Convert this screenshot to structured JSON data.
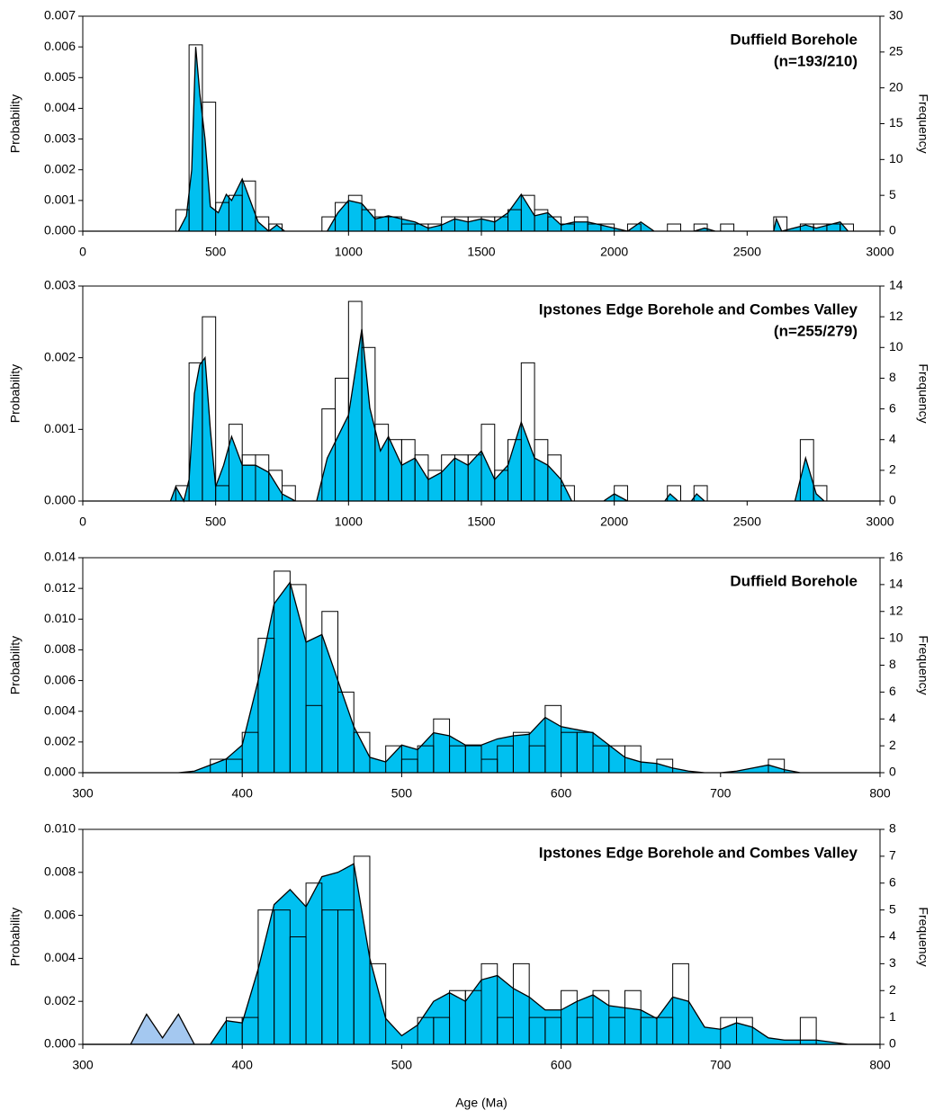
{
  "chart_data": [
    {
      "type": "density",
      "title": "Duffield Borehole",
      "subtitle": "(n=193/210)",
      "ylabel": "Probability",
      "y2label": "Frequency",
      "xlim": [
        0,
        3000
      ],
      "xticks": [
        0,
        500,
        1000,
        1500,
        2000,
        2500,
        3000
      ],
      "ylim": [
        0,
        0.007
      ],
      "yticks": [
        {
          "value": 0,
          "label": "0.000"
        },
        0.001,
        0.002,
        0.003,
        0.004,
        0.005,
        0.006,
        0.007
      ],
      "y2lim": [
        0,
        30
      ],
      "y2ticks": [
        0,
        5,
        10,
        15,
        20,
        25,
        30
      ],
      "x": [
        0,
        360,
        390,
        410,
        425,
        440,
        460,
        480,
        510,
        540,
        560,
        600,
        630,
        660,
        700,
        730,
        760,
        920,
        960,
        1000,
        1050,
        1100,
        1150,
        1200,
        1250,
        1300,
        1350,
        1400,
        1450,
        1500,
        1550,
        1600,
        1650,
        1700,
        1750,
        1800,
        1850,
        1900,
        1950,
        2000,
        2050,
        2100,
        2150,
        2300,
        2340,
        2380,
        2600,
        2610,
        2630,
        2720,
        2760,
        2850,
        2880,
        3000
      ],
      "series": [
        {
          "color": "#00c0f0",
          "values": [
            0,
            0,
            0.0005,
            0.002,
            0.006,
            0.0045,
            0.003,
            0.0008,
            0.0006,
            0.0012,
            0.001,
            0.0017,
            0.001,
            0.0003,
            0,
            0.0002,
            0,
            0,
            0.0006,
            0.001,
            0.0009,
            0.0004,
            0.0005,
            0.0004,
            0.0003,
            0.0001,
            0.0002,
            0.0004,
            0.0003,
            0.0004,
            0.0003,
            0.0006,
            0.0012,
            0.0005,
            0.0006,
            0.0002,
            0.0003,
            0.0003,
            0.0002,
            0.0001,
            0,
            0.0003,
            0,
            0,
            0.0001,
            0,
            0,
            0.0004,
            0,
            0.0002,
            0.0001,
            0.0003,
            0,
            0
          ]
        }
      ],
      "histogram": {
        "axis": "y2",
        "bins": [
          350,
          400,
          450,
          500,
          550,
          600,
          650,
          700,
          750,
          800,
          850,
          900,
          950,
          1000,
          1050,
          1100,
          1150,
          1200,
          1250,
          1300,
          1350,
          1400,
          1450,
          1500,
          1550,
          1600,
          1650,
          1700,
          1750,
          1800,
          1850,
          1900,
          1950,
          2000,
          2050,
          2100,
          2150,
          2200,
          2250,
          2300,
          2350,
          2400,
          2450,
          2500,
          2550,
          2600,
          2650,
          2700,
          2750,
          2800,
          2850,
          2900
        ],
        "values": [
          3,
          26,
          18,
          4,
          5,
          7,
          2,
          1,
          0,
          0,
          0,
          2,
          4,
          5,
          3,
          2,
          2,
          1,
          1,
          1,
          2,
          2,
          2,
          2,
          2,
          3,
          5,
          3,
          2,
          1,
          2,
          1,
          1,
          0,
          1,
          0,
          0,
          1,
          0,
          1,
          0,
          1,
          0,
          0,
          0,
          2,
          0,
          1,
          1,
          1,
          1
        ]
      }
    },
    {
      "type": "density",
      "title": "Ipstones Edge Borehole and Combes Valley",
      "subtitle": "(n=255/279)",
      "ylabel": "Probability",
      "y2label": "Frequency",
      "xlim": [
        0,
        3000
      ],
      "xticks": [
        0,
        500,
        1000,
        1500,
        2000,
        2500,
        3000
      ],
      "ylim": [
        0,
        0.003
      ],
      "yticks": [
        {
          "value": 0,
          "label": "0.000"
        },
        0.001,
        0.002,
        0.003
      ],
      "y2lim": [
        0,
        14
      ],
      "y2ticks": [
        0,
        2,
        4,
        6,
        8,
        10,
        12,
        14
      ],
      "x": [
        0,
        330,
        350,
        380,
        400,
        420,
        440,
        460,
        480,
        500,
        530,
        560,
        600,
        650,
        700,
        750,
        800,
        880,
        920,
        960,
        1000,
        1050,
        1080,
        1120,
        1150,
        1200,
        1250,
        1300,
        1350,
        1400,
        1450,
        1500,
        1550,
        1600,
        1650,
        1700,
        1750,
        1800,
        1840,
        1960,
        2000,
        2050,
        2190,
        2210,
        2240,
        2290,
        2310,
        2340,
        2680,
        2720,
        2760,
        2790,
        3000
      ],
      "series": [
        {
          "color": "#00c0f0",
          "values": [
            0,
            0,
            0.0002,
            0,
            0.0003,
            0.0015,
            0.0019,
            0.002,
            0.001,
            0.0002,
            0.0005,
            0.0009,
            0.0005,
            0.0005,
            0.0004,
            0.0001,
            0,
            0,
            0.0006,
            0.0009,
            0.0012,
            0.0024,
            0.0013,
            0.0007,
            0.0009,
            0.0005,
            0.0006,
            0.0003,
            0.0004,
            0.0006,
            0.0005,
            0.0007,
            0.0003,
            0.0005,
            0.0011,
            0.0006,
            0.0005,
            0.0003,
            0,
            0,
            0.0001,
            0,
            0,
            0.0001,
            0,
            0,
            0.0001,
            0,
            0,
            0.0006,
            0.0001,
            0,
            0
          ]
        }
      ],
      "histogram": {
        "axis": "y2",
        "bins": [
          350,
          400,
          450,
          500,
          550,
          600,
          650,
          700,
          750,
          800,
          850,
          900,
          950,
          1000,
          1050,
          1100,
          1150,
          1200,
          1250,
          1300,
          1350,
          1400,
          1450,
          1500,
          1550,
          1600,
          1650,
          1700,
          1750,
          1800,
          1850,
          1900,
          1950,
          2000,
          2050,
          2100,
          2150,
          2200,
          2250,
          2300,
          2350,
          2400,
          2450,
          2500,
          2550,
          2600,
          2650,
          2700,
          2750,
          2800
        ],
        "values": [
          1,
          9,
          12,
          1,
          5,
          3,
          3,
          2,
          1,
          0,
          0,
          6,
          8,
          13,
          10,
          5,
          4,
          4,
          3,
          2,
          3,
          3,
          3,
          5,
          2,
          4,
          9,
          4,
          3,
          1,
          0,
          0,
          0,
          1,
          0,
          0,
          0,
          1,
          0,
          1,
          0,
          0,
          0,
          0,
          0,
          0,
          0,
          4,
          1
        ]
      }
    },
    {
      "type": "density",
      "title": "Duffield Borehole",
      "ylabel": "Probability",
      "y2label": "Frequency",
      "xlim": [
        300,
        800
      ],
      "xticks": [
        300,
        400,
        500,
        600,
        700,
        800
      ],
      "ylim": [
        0,
        0.014
      ],
      "yticks": [
        {
          "value": 0,
          "label": "0.000"
        },
        0.002,
        0.004,
        0.006,
        0.008,
        {
          "value": 0.01,
          "label": "0.010"
        },
        0.012,
        0.014
      ],
      "y2lim": [
        0,
        16
      ],
      "y2ticks": [
        0,
        2,
        4,
        6,
        8,
        10,
        12,
        14,
        16
      ],
      "x": [
        300,
        310,
        320,
        330,
        340,
        350,
        360,
        370,
        380,
        390,
        400,
        410,
        420,
        430,
        440,
        450,
        460,
        470,
        480,
        490,
        500,
        510,
        520,
        530,
        540,
        550,
        560,
        570,
        580,
        590,
        600,
        610,
        620,
        630,
        640,
        650,
        660,
        670,
        680,
        690,
        700,
        710,
        720,
        730,
        740,
        750,
        760,
        770,
        780,
        790,
        800
      ],
      "series": [
        {
          "color": "#00c0f0",
          "values": [
            0,
            0,
            0,
            0,
            0,
            0,
            0,
            0.0001,
            0.0005,
            0.0009,
            0.0018,
            0.006,
            0.011,
            0.0124,
            0.0085,
            0.009,
            0.006,
            0.003,
            0.001,
            0.0007,
            0.0018,
            0.0015,
            0.0026,
            0.0024,
            0.0018,
            0.0018,
            0.0022,
            0.0024,
            0.0025,
            0.0036,
            0.003,
            0.0028,
            0.0026,
            0.0018,
            0.001,
            0.0007,
            0.0006,
            0.0003,
            0.0001,
            0,
            0,
            0.0001,
            0.0003,
            0.0005,
            0.0002,
            0,
            0,
            0,
            0,
            0,
            0
          ]
        }
      ],
      "histogram": {
        "axis": "y2",
        "bins": [
          380,
          390,
          400,
          410,
          420,
          430,
          440,
          450,
          460,
          470,
          480,
          490,
          500,
          510,
          520,
          530,
          540,
          550,
          560,
          570,
          580,
          590,
          600,
          610,
          620,
          630,
          640,
          650,
          660,
          670,
          680,
          690,
          700,
          710,
          720,
          730,
          740
        ],
        "values": [
          1,
          1,
          3,
          10,
          15,
          14,
          5,
          12,
          6,
          3,
          0,
          2,
          1,
          2,
          4,
          2,
          2,
          1,
          2,
          3,
          2,
          5,
          3,
          3,
          2,
          2,
          2,
          0,
          1,
          0,
          0,
          0,
          0,
          0,
          0,
          1
        ]
      }
    },
    {
      "type": "density",
      "title": "Ipstones Edge Borehole and Combes Valley",
      "ylabel": "Probability",
      "y2label": "Frequency",
      "xlabel": "Age (Ma)",
      "xlim": [
        300,
        800
      ],
      "xticks": [
        300,
        400,
        500,
        600,
        700,
        800
      ],
      "ylim": [
        0,
        0.01
      ],
      "yticks": [
        {
          "value": 0,
          "label": "0.000"
        },
        0.002,
        0.004,
        0.006,
        0.008,
        {
          "value": 0.01,
          "label": "0.010"
        }
      ],
      "y2lim": [
        0,
        8
      ],
      "y2ticks": [
        0,
        1,
        2,
        3,
        4,
        5,
        6,
        7,
        8
      ],
      "x": [
        300,
        310,
        320,
        330,
        340,
        350,
        360,
        370,
        380,
        390,
        400,
        410,
        420,
        430,
        440,
        450,
        460,
        470,
        480,
        490,
        500,
        510,
        520,
        530,
        540,
        550,
        560,
        570,
        580,
        590,
        600,
        610,
        620,
        630,
        640,
        650,
        660,
        670,
        680,
        690,
        700,
        710,
        720,
        730,
        740,
        750,
        760,
        770,
        780,
        790,
        800
      ],
      "series": [
        {
          "color": "#a4c8f0",
          "values": [
            0,
            0,
            0,
            0,
            0.0014,
            0.0003,
            0.0014,
            0,
            0,
            0,
            0,
            0,
            0,
            0,
            0,
            0,
            0,
            0,
            0,
            0,
            0,
            0,
            0,
            0,
            0,
            0,
            0,
            0,
            0,
            0,
            0,
            0,
            0,
            0,
            0,
            0,
            0,
            0,
            0,
            0,
            0,
            0,
            0,
            0,
            0,
            0,
            0,
            0,
            0,
            0,
            0
          ]
        },
        {
          "color": "#00c0f0",
          "values": [
            0,
            0,
            0,
            0,
            0,
            0,
            0,
            0,
            0,
            0.0011,
            0.001,
            0.0035,
            0.0065,
            0.0072,
            0.0064,
            0.0078,
            0.008,
            0.0084,
            0.004,
            0.0012,
            0.0004,
            0.0009,
            0.002,
            0.0024,
            0.002,
            0.003,
            0.0032,
            0.0026,
            0.0022,
            0.0016,
            0.0016,
            0.002,
            0.0023,
            0.0018,
            0.0017,
            0.0016,
            0.0012,
            0.0022,
            0.002,
            0.0008,
            0.0007,
            0.001,
            0.0008,
            0.0003,
            0.0002,
            0.0002,
            0.0002,
            0.0001,
            0,
            0,
            0
          ]
        }
      ],
      "histogram": {
        "axis": "y2",
        "bins": [
          390,
          400,
          410,
          420,
          430,
          440,
          450,
          460,
          470,
          480,
          490,
          500,
          510,
          520,
          530,
          540,
          550,
          560,
          570,
          580,
          590,
          600,
          610,
          620,
          630,
          640,
          650,
          660,
          670,
          680,
          690,
          700,
          710,
          720,
          730,
          740,
          750,
          760
        ],
        "values": [
          1,
          1,
          5,
          5,
          4,
          6,
          5,
          5,
          7,
          3,
          0,
          0,
          1,
          1,
          2,
          2,
          3,
          1,
          3,
          1,
          1,
          2,
          1,
          2,
          1,
          2,
          1,
          1,
          3,
          0,
          0,
          1,
          1,
          0,
          0,
          0,
          1
        ]
      }
    }
  ]
}
